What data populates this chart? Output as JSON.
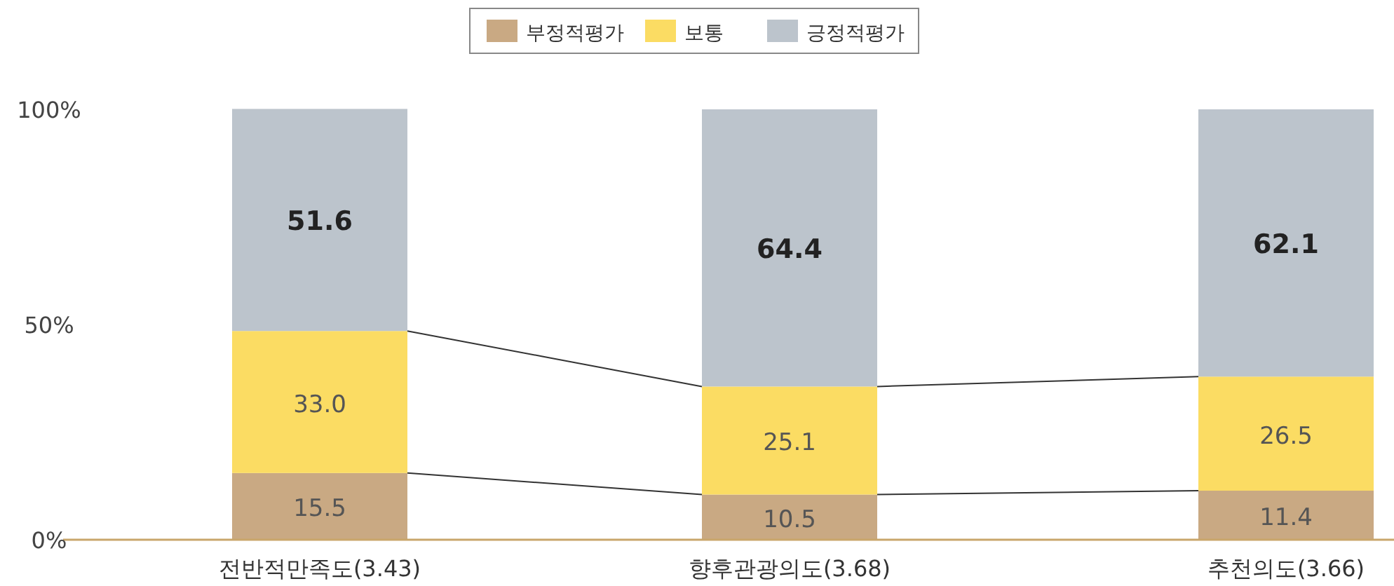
{
  "chart_data": {
    "type": "bar",
    "stacked": true,
    "categories": [
      "전반적만족도(3.43)",
      "향후관광의도(3.68)",
      "추천의도(3.66)"
    ],
    "series": [
      {
        "name": "부정적평가",
        "color": "#c9a983",
        "values": [
          15.5,
          10.5,
          11.4
        ],
        "value_labels": [
          "15.5",
          "10.5",
          "11.4"
        ]
      },
      {
        "name": "보통",
        "color": "#fbdc63",
        "values": [
          33.0,
          25.1,
          26.5
        ],
        "value_labels": [
          "33.0",
          "25.1",
          "26.5"
        ]
      },
      {
        "name": "긍정적평가",
        "color": "#bcc4cc",
        "values": [
          51.6,
          64.4,
          62.1
        ],
        "value_labels": [
          "51.6",
          "64.4",
          "62.1"
        ]
      }
    ],
    "ylim": [
      0,
      100
    ],
    "yticks": [
      {
        "value": 0,
        "label": "0%"
      },
      {
        "value": 50,
        "label": "50%"
      },
      {
        "value": 100,
        "label": "100%"
      }
    ],
    "legend": "top",
    "grid": false
  }
}
